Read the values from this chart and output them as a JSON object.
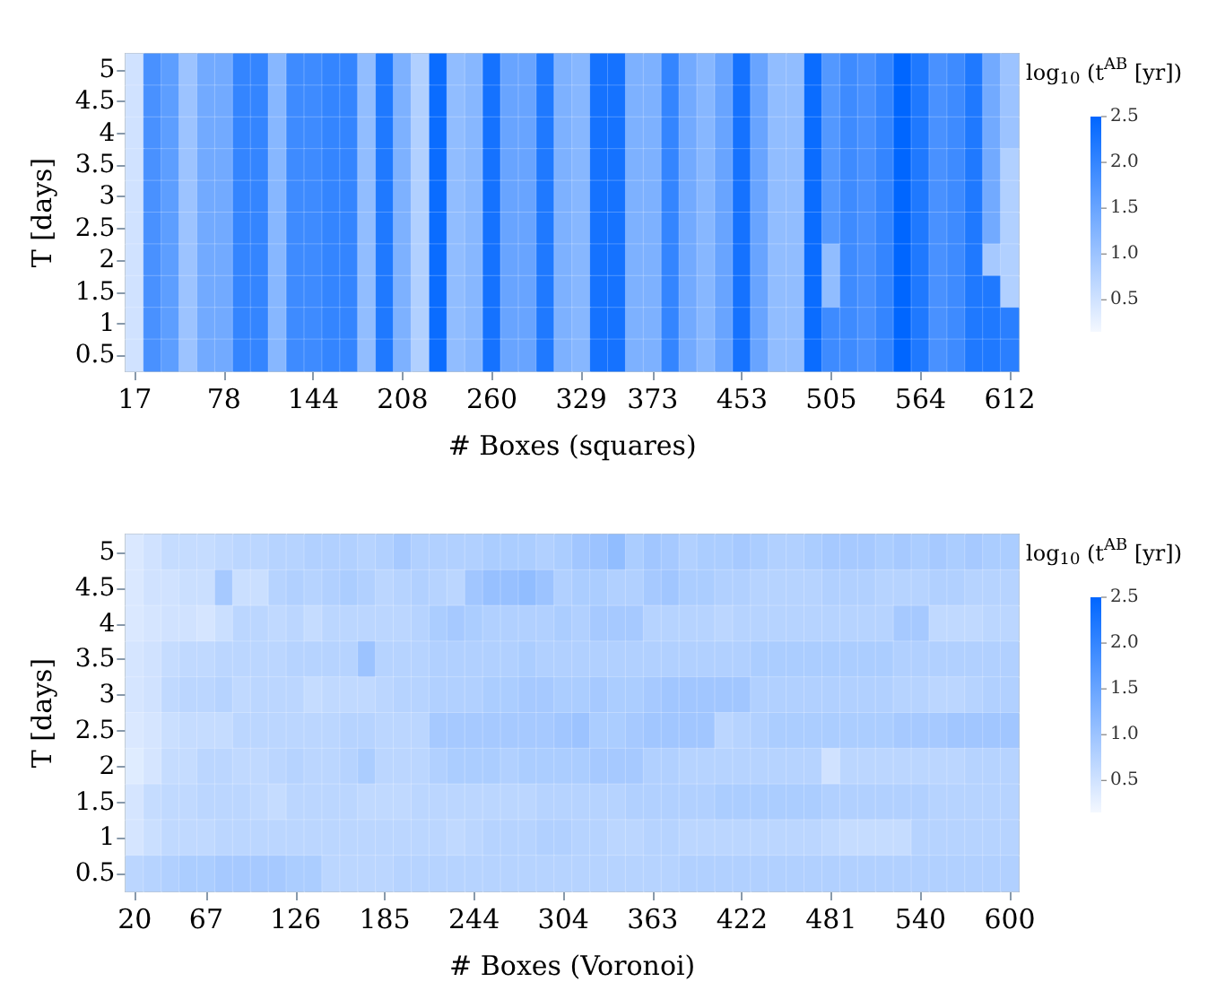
{
  "chart_data": [
    {
      "type": "heatmap",
      "xlabel": "# Boxes (squares)",
      "ylabel": "T [days]",
      "clabel": "log$_{10}$ (t$^{AB}$ [yr])",
      "categories": [
        "17",
        null,
        null,
        null,
        null,
        "78",
        null,
        null,
        null,
        null,
        "144",
        null,
        null,
        null,
        null,
        "208",
        null,
        null,
        null,
        null,
        "260",
        null,
        null,
        null,
        null,
        "329",
        null,
        null,
        null,
        "373",
        null,
        null,
        null,
        null,
        "453",
        null,
        null,
        null,
        null,
        "505",
        null,
        null,
        null,
        null,
        "564",
        null,
        null,
        null,
        null,
        "612"
      ],
      "y_categories": [
        "5",
        "4.5",
        "4",
        "3.5",
        "3",
        "2.5",
        "2",
        "1.5",
        "1",
        "0.5"
      ],
      "clim": [
        0.15,
        2.5
      ],
      "cticks": [
        {
          "value": 0.5,
          "label": "0.5"
        },
        {
          "value": 1,
          "label": "1.0"
        },
        {
          "value": 1.5,
          "label": "1.5"
        },
        {
          "value": 2,
          "label": "2.0"
        },
        {
          "value": 2.5,
          "label": "2.5"
        }
      ],
      "cells": [
        [
          0.5,
          1.8,
          1.6,
          1.0,
          1.4,
          1.4,
          2.0,
          2.0,
          1.2,
          1.9,
          1.9,
          2.0,
          2.0,
          1.1,
          2.2,
          1.3,
          0.8,
          2.4,
          1.1,
          1.2,
          2.3,
          1.5,
          1.5,
          2.2,
          1.3,
          1.2,
          2.3,
          2.3,
          1.3,
          1.3,
          2.0,
          1.4,
          1.2,
          1.5,
          2.3,
          1.5,
          1.1,
          1.1,
          2.4,
          1.7,
          1.9,
          1.8,
          2.0,
          2.5,
          2.2,
          1.8,
          1.9,
          2.2,
          1.4,
          1.0
        ],
        [
          0.5,
          1.8,
          1.6,
          1.0,
          1.4,
          1.4,
          2.0,
          2.0,
          1.2,
          1.9,
          1.9,
          2.0,
          2.0,
          1.1,
          2.2,
          1.3,
          0.8,
          2.4,
          1.1,
          1.2,
          2.3,
          1.5,
          1.5,
          2.2,
          1.3,
          1.2,
          2.3,
          2.3,
          1.3,
          1.3,
          2.0,
          1.4,
          1.2,
          1.5,
          2.3,
          1.5,
          1.1,
          1.1,
          2.4,
          1.7,
          1.9,
          1.8,
          2.0,
          2.5,
          2.2,
          1.8,
          1.9,
          2.2,
          1.4,
          1.0
        ],
        [
          0.5,
          1.8,
          1.6,
          1.0,
          1.4,
          1.4,
          2.0,
          2.0,
          1.2,
          1.9,
          1.9,
          2.0,
          2.0,
          1.1,
          2.2,
          1.3,
          0.8,
          2.4,
          1.1,
          1.2,
          2.3,
          1.5,
          1.5,
          2.2,
          1.3,
          1.2,
          2.3,
          2.3,
          1.3,
          1.3,
          2.0,
          1.4,
          1.2,
          1.5,
          2.3,
          1.5,
          1.1,
          1.1,
          2.4,
          1.7,
          1.9,
          1.8,
          2.0,
          2.5,
          2.2,
          1.8,
          1.9,
          2.2,
          1.4,
          1.0
        ],
        [
          0.5,
          1.8,
          1.6,
          1.0,
          1.4,
          1.4,
          2.0,
          2.0,
          1.2,
          1.9,
          1.9,
          2.0,
          2.0,
          1.1,
          2.2,
          1.3,
          0.8,
          2.4,
          1.1,
          1.2,
          2.3,
          1.5,
          1.5,
          2.2,
          1.3,
          1.2,
          2.3,
          2.3,
          1.3,
          1.3,
          2.0,
          1.4,
          1.2,
          1.5,
          2.3,
          1.5,
          1.1,
          1.1,
          2.4,
          1.7,
          1.9,
          1.8,
          2.0,
          2.5,
          2.2,
          1.8,
          1.9,
          2.2,
          1.4,
          0.8
        ],
        [
          0.5,
          1.8,
          1.6,
          1.0,
          1.4,
          1.4,
          2.0,
          2.0,
          1.2,
          1.9,
          1.9,
          2.0,
          2.0,
          1.1,
          2.2,
          1.3,
          0.8,
          2.4,
          1.1,
          1.2,
          2.3,
          1.5,
          1.5,
          2.2,
          1.3,
          1.2,
          2.3,
          2.3,
          1.3,
          1.3,
          2.0,
          1.4,
          1.2,
          1.5,
          2.3,
          1.5,
          1.1,
          1.1,
          2.4,
          1.7,
          1.9,
          1.8,
          2.0,
          2.5,
          2.2,
          1.8,
          1.9,
          2.2,
          1.4,
          0.8
        ],
        [
          0.5,
          1.8,
          1.6,
          1.0,
          1.4,
          1.4,
          2.0,
          2.0,
          1.2,
          1.9,
          1.9,
          2.0,
          2.0,
          1.1,
          2.2,
          1.3,
          0.8,
          2.4,
          1.1,
          1.2,
          2.3,
          1.5,
          1.5,
          2.2,
          1.3,
          1.2,
          2.3,
          2.3,
          1.3,
          1.3,
          2.0,
          1.4,
          1.2,
          1.5,
          2.3,
          1.5,
          1.1,
          1.1,
          2.4,
          1.7,
          1.9,
          1.8,
          2.0,
          2.5,
          2.2,
          1.8,
          1.9,
          2.2,
          1.4,
          0.8
        ],
        [
          0.5,
          1.8,
          1.6,
          1.0,
          1.4,
          1.4,
          2.0,
          2.0,
          1.2,
          1.9,
          1.9,
          2.0,
          2.0,
          1.1,
          2.2,
          1.3,
          0.8,
          2.4,
          1.1,
          1.2,
          2.3,
          1.5,
          1.5,
          2.2,
          1.3,
          1.2,
          2.3,
          2.3,
          1.3,
          1.3,
          2.0,
          1.4,
          1.2,
          1.5,
          2.3,
          1.5,
          1.1,
          1.1,
          2.4,
          1.1,
          1.9,
          1.8,
          2.0,
          2.5,
          2.2,
          1.8,
          1.9,
          2.2,
          0.9,
          0.8
        ],
        [
          0.5,
          1.8,
          1.6,
          1.0,
          1.4,
          1.4,
          2.0,
          2.0,
          1.2,
          1.9,
          1.9,
          2.0,
          2.0,
          1.1,
          2.2,
          1.3,
          0.8,
          2.4,
          1.1,
          1.2,
          2.3,
          1.5,
          1.5,
          2.2,
          1.3,
          1.2,
          2.3,
          2.3,
          1.3,
          1.3,
          2.0,
          1.4,
          1.2,
          1.5,
          2.3,
          1.5,
          1.1,
          1.1,
          2.4,
          1.1,
          1.9,
          1.8,
          2.0,
          2.5,
          2.2,
          1.8,
          1.9,
          2.2,
          2.2,
          0.8
        ],
        [
          0.5,
          1.8,
          1.6,
          1.0,
          1.4,
          1.4,
          2.0,
          2.0,
          1.2,
          1.9,
          1.9,
          2.0,
          2.0,
          1.1,
          2.2,
          1.3,
          0.8,
          2.4,
          1.1,
          1.2,
          2.3,
          1.5,
          1.5,
          2.2,
          1.3,
          1.2,
          2.3,
          2.3,
          1.3,
          1.3,
          2.0,
          1.4,
          1.2,
          1.5,
          2.3,
          1.5,
          1.1,
          1.1,
          2.4,
          1.9,
          1.9,
          1.8,
          2.0,
          2.5,
          2.2,
          1.8,
          1.9,
          2.2,
          2.2,
          2.1
        ],
        [
          0.5,
          1.8,
          1.6,
          1.0,
          1.4,
          1.4,
          2.0,
          2.0,
          1.2,
          1.9,
          1.9,
          2.0,
          2.0,
          1.1,
          2.2,
          1.3,
          0.8,
          2.4,
          1.1,
          1.2,
          2.3,
          1.5,
          1.5,
          2.2,
          1.3,
          1.2,
          2.3,
          2.3,
          1.3,
          1.3,
          2.0,
          1.4,
          1.2,
          1.5,
          2.3,
          1.5,
          1.1,
          1.1,
          2.4,
          1.9,
          1.9,
          1.8,
          2.0,
          2.5,
          2.2,
          1.8,
          1.9,
          2.2,
          2.2,
          2.1
        ]
      ]
    },
    {
      "type": "heatmap",
      "xlabel": "# Boxes (Voronoi)",
      "ylabel": "T [days]",
      "clabel": "log$_{10}$ (t$^{AB}$ [yr])",
      "categories": [
        "20",
        null,
        null,
        null,
        "67",
        null,
        null,
        null,
        null,
        "126",
        null,
        null,
        null,
        null,
        "185",
        null,
        null,
        null,
        null,
        "244",
        null,
        null,
        null,
        null,
        "304",
        null,
        null,
        null,
        null,
        "363",
        null,
        null,
        null,
        null,
        "422",
        null,
        null,
        null,
        null,
        "481",
        null,
        null,
        null,
        null,
        "540",
        null,
        null,
        null,
        null,
        "600"
      ],
      "y_categories": [
        "5",
        "4.5",
        "4",
        "3.5",
        "3",
        "2.5",
        "2",
        "1.5",
        "1",
        "0.5"
      ],
      "clim": [
        0.15,
        2.5
      ],
      "cticks": [
        {
          "value": 0.5,
          "label": "0.5"
        },
        {
          "value": 1,
          "label": "1.0"
        },
        {
          "value": 1.5,
          "label": "1.5"
        },
        {
          "value": 2,
          "label": "2.0"
        },
        {
          "value": 2.5,
          "label": "2.5"
        }
      ],
      "cells": [
        [
          0.4,
          0.5,
          0.6,
          0.6,
          0.6,
          0.65,
          0.7,
          0.7,
          0.75,
          0.75,
          0.8,
          0.8,
          0.8,
          0.75,
          0.8,
          0.9,
          0.8,
          0.8,
          0.8,
          0.8,
          0.85,
          0.85,
          0.85,
          0.8,
          0.85,
          0.95,
          1.0,
          1.1,
          0.85,
          0.95,
          0.9,
          0.8,
          0.85,
          0.85,
          0.9,
          0.85,
          0.8,
          0.8,
          0.85,
          0.9,
          0.9,
          0.9,
          0.85,
          0.9,
          0.85,
          0.9,
          0.85,
          0.9,
          0.85,
          0.85
        ],
        [
          0.4,
          0.5,
          0.5,
          0.55,
          0.55,
          0.9,
          0.55,
          0.55,
          0.75,
          0.8,
          0.75,
          0.8,
          0.85,
          0.8,
          0.7,
          0.75,
          0.8,
          0.75,
          0.7,
          0.95,
          1.05,
          1.05,
          1.1,
          1.0,
          0.8,
          0.85,
          0.85,
          0.8,
          0.8,
          0.9,
          0.95,
          0.85,
          0.85,
          0.8,
          0.8,
          0.75,
          0.75,
          0.75,
          0.75,
          0.8,
          0.8,
          0.8,
          0.75,
          0.75,
          0.75,
          0.8,
          0.8,
          0.75,
          0.75,
          0.75
        ],
        [
          0.4,
          0.45,
          0.5,
          0.5,
          0.45,
          0.55,
          0.7,
          0.7,
          0.65,
          0.7,
          0.6,
          0.7,
          0.7,
          0.7,
          0.7,
          0.7,
          0.75,
          0.85,
          0.9,
          0.85,
          0.8,
          0.8,
          0.8,
          0.8,
          0.85,
          0.8,
          0.9,
          0.9,
          0.9,
          0.75,
          0.75,
          0.75,
          0.75,
          0.7,
          0.75,
          0.75,
          0.75,
          0.75,
          0.75,
          0.75,
          0.75,
          0.75,
          0.75,
          0.9,
          0.9,
          0.65,
          0.65,
          0.65,
          0.7,
          0.7
        ],
        [
          0.45,
          0.5,
          0.6,
          0.65,
          0.65,
          0.7,
          0.7,
          0.7,
          0.7,
          0.75,
          0.75,
          0.75,
          0.75,
          1.0,
          0.75,
          0.75,
          0.75,
          0.8,
          0.8,
          0.8,
          0.8,
          0.8,
          0.85,
          0.8,
          0.8,
          0.8,
          0.8,
          0.8,
          0.8,
          0.8,
          0.8,
          0.8,
          0.8,
          0.8,
          0.8,
          0.85,
          0.85,
          0.85,
          0.85,
          0.85,
          0.85,
          0.85,
          0.85,
          0.8,
          0.8,
          0.8,
          0.8,
          0.8,
          0.8,
          0.8
        ],
        [
          0.45,
          0.5,
          0.65,
          0.7,
          0.7,
          0.75,
          0.65,
          0.7,
          0.7,
          0.7,
          0.6,
          0.65,
          0.65,
          0.65,
          0.7,
          0.75,
          0.75,
          0.8,
          0.8,
          0.8,
          0.85,
          0.85,
          0.9,
          0.9,
          0.85,
          0.85,
          0.9,
          0.85,
          0.85,
          0.9,
          0.95,
          0.95,
          0.95,
          0.95,
          0.95,
          0.8,
          0.8,
          0.8,
          0.8,
          0.8,
          0.8,
          0.8,
          0.8,
          0.75,
          0.75,
          0.7,
          0.7,
          0.75,
          0.8,
          0.8
        ],
        [
          0.4,
          0.45,
          0.55,
          0.6,
          0.6,
          0.6,
          0.7,
          0.7,
          0.7,
          0.7,
          0.7,
          0.7,
          0.75,
          0.75,
          0.7,
          0.7,
          0.7,
          0.9,
          0.9,
          0.9,
          0.9,
          0.9,
          0.9,
          0.9,
          0.95,
          1.0,
          0.85,
          0.85,
          0.9,
          0.95,
          0.95,
          0.95,
          0.95,
          0.7,
          0.75,
          0.8,
          0.85,
          0.85,
          0.85,
          0.85,
          0.85,
          0.85,
          0.85,
          0.9,
          0.9,
          0.9,
          0.95,
          0.95,
          0.95,
          0.95
        ],
        [
          0.35,
          0.45,
          0.6,
          0.6,
          0.7,
          0.7,
          0.65,
          0.65,
          0.7,
          0.75,
          0.7,
          0.7,
          0.75,
          0.85,
          0.7,
          0.7,
          0.7,
          0.8,
          0.85,
          0.85,
          0.85,
          0.8,
          0.85,
          0.85,
          0.85,
          0.85,
          0.9,
          0.9,
          0.9,
          0.8,
          0.8,
          0.75,
          0.75,
          0.75,
          0.75,
          0.75,
          0.75,
          0.75,
          0.75,
          0.5,
          0.7,
          0.7,
          0.7,
          0.7,
          0.7,
          0.7,
          0.7,
          0.75,
          0.75,
          0.75
        ],
        [
          0.45,
          0.6,
          0.65,
          0.65,
          0.7,
          0.7,
          0.7,
          0.65,
          0.6,
          0.7,
          0.7,
          0.7,
          0.7,
          0.65,
          0.65,
          0.65,
          0.7,
          0.7,
          0.7,
          0.7,
          0.7,
          0.7,
          0.7,
          0.75,
          0.75,
          0.75,
          0.75,
          0.75,
          0.8,
          0.8,
          0.8,
          0.8,
          0.8,
          0.85,
          0.85,
          0.85,
          0.85,
          0.85,
          0.85,
          0.8,
          0.8,
          0.8,
          0.8,
          0.8,
          0.8,
          0.75,
          0.75,
          0.75,
          0.75,
          0.75
        ],
        [
          0.45,
          0.55,
          0.65,
          0.65,
          0.65,
          0.7,
          0.7,
          0.7,
          0.7,
          0.7,
          0.7,
          0.7,
          0.7,
          0.7,
          0.7,
          0.7,
          0.7,
          0.7,
          0.65,
          0.7,
          0.75,
          0.75,
          0.75,
          0.8,
          0.8,
          0.75,
          0.75,
          0.7,
          0.7,
          0.75,
          0.75,
          0.7,
          0.7,
          0.7,
          0.7,
          0.7,
          0.7,
          0.7,
          0.7,
          0.65,
          0.6,
          0.6,
          0.6,
          0.6,
          0.75,
          0.75,
          0.75,
          0.75,
          0.75,
          0.75
        ],
        [
          0.7,
          0.75,
          0.8,
          0.85,
          0.85,
          0.9,
          0.9,
          0.9,
          0.9,
          0.85,
          0.85,
          0.7,
          0.7,
          0.7,
          0.7,
          0.75,
          0.75,
          0.75,
          0.75,
          0.75,
          0.75,
          0.75,
          0.75,
          0.75,
          0.75,
          0.75,
          0.75,
          0.75,
          0.75,
          0.75,
          0.75,
          0.8,
          0.8,
          0.8,
          0.8,
          0.8,
          0.8,
          0.8,
          0.8,
          0.8,
          0.8,
          0.8,
          0.8,
          0.8,
          0.8,
          0.8,
          0.8,
          0.8,
          0.8,
          0.8
        ]
      ]
    }
  ]
}
